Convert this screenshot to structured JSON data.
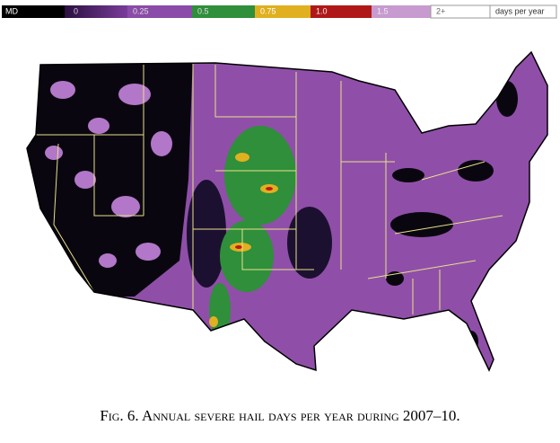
{
  "legend": {
    "items": [
      "MD",
      "0",
      "0.25",
      "0.5",
      "0.75",
      "1.0",
      "1.5",
      "2+"
    ],
    "unit": "days per year"
  },
  "caption": "Fig. 6. Annual severe hail days per year during 2007–10."
}
